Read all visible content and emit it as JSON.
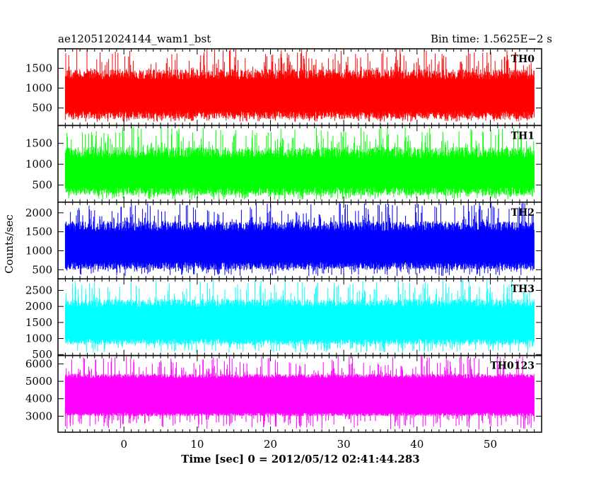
{
  "chart_data": {
    "type": "line",
    "title_left": "ae120512024144_wam1_bst",
    "title_right": "Bin time: 1.5625E−2 s",
    "xlabel": "Time [sec] 0 = 2012/05/12 02:41:44.283",
    "ylabel": "Counts/sec",
    "xlim": [
      -9,
      57
    ],
    "x_data_range": [
      -8,
      56
    ],
    "xticks": [
      0,
      10,
      20,
      30,
      40,
      50
    ],
    "grid": false,
    "panels": [
      {
        "name": "TH0",
        "color": "#ff0000",
        "ylim": [
          60,
          1990
        ],
        "yticks": [
          500,
          1000,
          1500
        ],
        "band_low": 320,
        "band_high": 1350,
        "spike_min": 150,
        "spike_max": 1990
      },
      {
        "name": "TH1",
        "color": "#00ff00",
        "ylim": [
          90,
          1930
        ],
        "yticks": [
          500,
          1000,
          1500
        ],
        "band_low": 350,
        "band_high": 1280,
        "spike_min": 150,
        "spike_max": 1900
      },
      {
        "name": "TH2",
        "color": "#0000ff",
        "ylim": [
          260,
          2280
        ],
        "yticks": [
          500,
          1000,
          1500,
          2000
        ],
        "band_low": 600,
        "band_high": 1650,
        "spike_min": 330,
        "spike_max": 2270
      },
      {
        "name": "TH3",
        "color": "#00ffff",
        "ylim": [
          470,
          2860
        ],
        "yticks": [
          500,
          1000,
          1500,
          2000,
          2500
        ],
        "band_low": 900,
        "band_high": 2100,
        "spike_min": 560,
        "spike_max": 2850
      },
      {
        "name": "TH0123",
        "color": "#ff00ff",
        "ylim": [
          2080,
          6480
        ],
        "yticks": [
          3000,
          4000,
          5000,
          6000
        ],
        "band_low": 3100,
        "band_high": 5300,
        "spike_min": 2250,
        "spike_max": 6470
      }
    ]
  }
}
